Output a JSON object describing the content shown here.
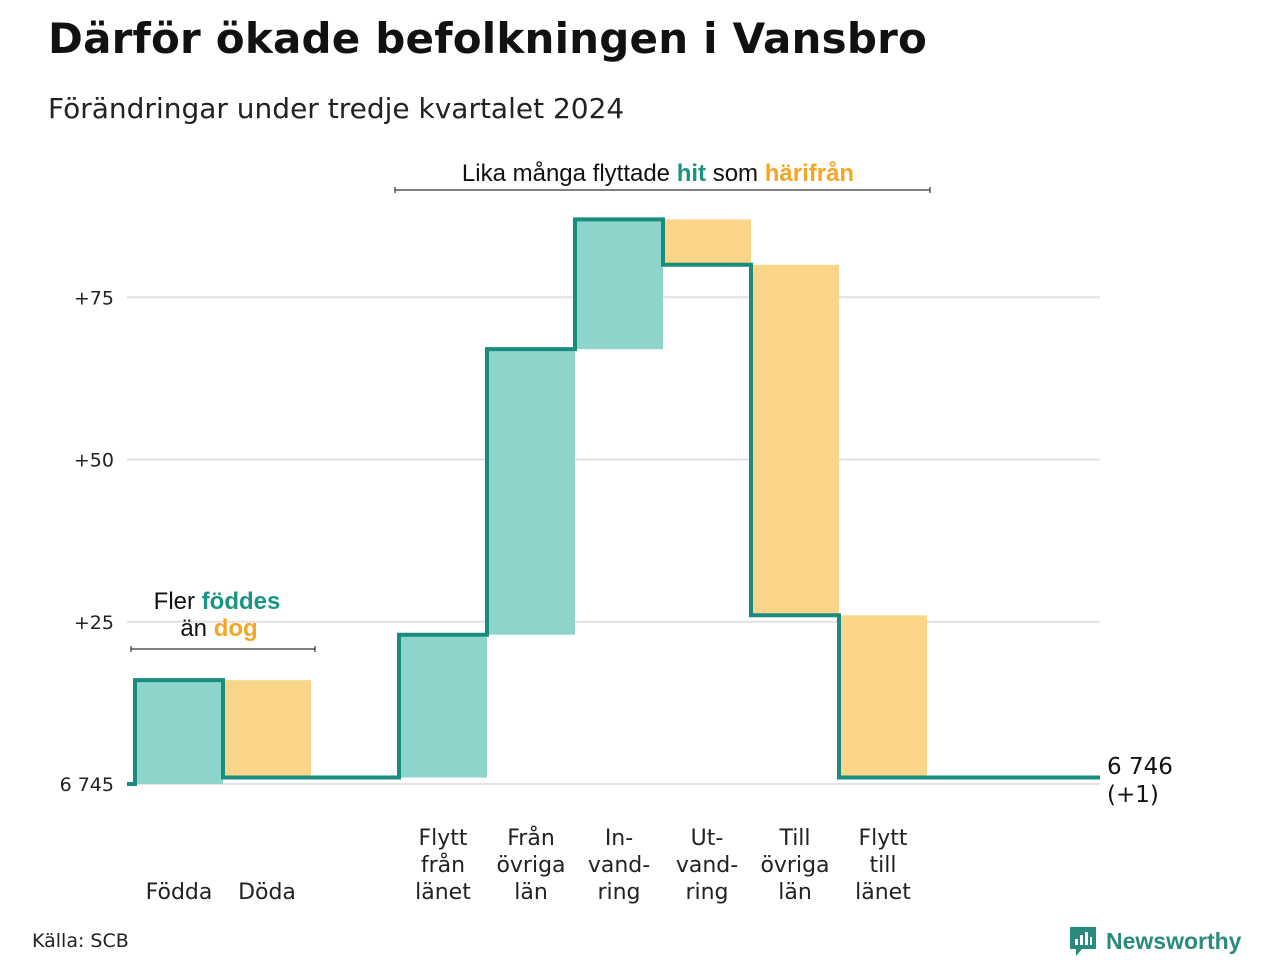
{
  "title": "Därför ökade befolkningen i Vansbro",
  "subtitle": "Förändringar under tredje kvartalet 2024",
  "source": "Källa: SCB",
  "brand": {
    "name": "Newsworthy",
    "icon": "bar-chart-speech-bubble-icon",
    "color": "#2a8a7e"
  },
  "colors": {
    "increase": "#8dd5cb",
    "decrease": "#fad58a",
    "line": "#1a8c7e",
    "grid": "#e1e1e6",
    "accent_in": "#1a9584",
    "accent_out": "#f5a623"
  },
  "annotations": {
    "births": {
      "line1": "Fler",
      "word1": "föddes",
      "line2": "än",
      "word2": "dog"
    },
    "migration": {
      "prefix": "Lika många flyttade",
      "word1": "hit",
      "middle": "som",
      "word2": "härifrån"
    }
  },
  "end_label": {
    "value": "6 746",
    "change": "(+1)"
  },
  "chart_data": {
    "type": "waterfall",
    "baseline": 6745,
    "baseline_label": "6 745",
    "y_ticks": [
      {
        "value": 0,
        "label": "6 745"
      },
      {
        "value": 25,
        "label": "+25"
      },
      {
        "value": 50,
        "label": "+50"
      },
      {
        "value": 75,
        "label": "+75"
      }
    ],
    "ylim": [
      0,
      90
    ],
    "grid": true,
    "steps": [
      {
        "label": [
          "Födda"
        ],
        "change": 16,
        "kind": "increase"
      },
      {
        "label": [
          "Döda"
        ],
        "change": -15,
        "kind": "decrease"
      },
      {
        "label": [
          "Flytt",
          "från",
          "länet"
        ],
        "change": 22,
        "kind": "increase"
      },
      {
        "label": [
          "Från",
          "övriga",
          "län"
        ],
        "change": 44,
        "kind": "increase"
      },
      {
        "label": [
          "In-",
          "vand-",
          "ring"
        ],
        "change": 20,
        "kind": "increase"
      },
      {
        "label": [
          "Ut-",
          "vand-",
          "ring"
        ],
        "change": -7,
        "kind": "decrease"
      },
      {
        "label": [
          "Till",
          "övriga",
          "län"
        ],
        "change": -54,
        "kind": "decrease"
      },
      {
        "label": [
          "Flytt",
          "till",
          "länet"
        ],
        "change": -25,
        "kind": "decrease"
      }
    ],
    "end_value": 6746,
    "total_change": 1
  }
}
